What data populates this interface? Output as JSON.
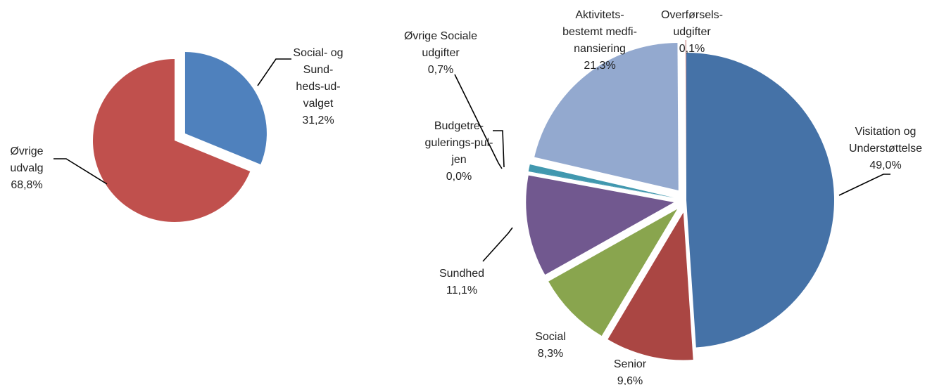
{
  "chart_data": [
    {
      "type": "pie",
      "title": "",
      "slices": [
        {
          "label_lines": [
            "Social- og",
            "Sund-",
            "heds-ud-",
            "valget"
          ],
          "value": 31.2,
          "value_label": "31,2%",
          "color": "#4f81bd",
          "exploded": true
        },
        {
          "label_lines": [
            "Øvrige",
            "udvalg"
          ],
          "value": 68.8,
          "value_label": "68,8%",
          "color": "#c0504d",
          "exploded": false
        }
      ]
    },
    {
      "type": "pie",
      "title": "",
      "slices": [
        {
          "label_lines": [
            "Visitation og",
            "Understøttelse"
          ],
          "value": 49.0,
          "value_label": "49,0%",
          "color": "#4572a7",
          "exploded": false
        },
        {
          "label_lines": [
            "Senior"
          ],
          "value": 9.6,
          "value_label": "9,6%",
          "color": "#aa4643",
          "exploded": true
        },
        {
          "label_lines": [
            "Social"
          ],
          "value": 8.3,
          "value_label": "8,3%",
          "color": "#89a54e",
          "exploded": true
        },
        {
          "label_lines": [
            "Sundhed"
          ],
          "value": 11.1,
          "value_label": "11,1%",
          "color": "#71588f",
          "exploded": true
        },
        {
          "label_lines": [
            "Budgetre-",
            "gulerings-pul-",
            "jen"
          ],
          "value": 0.0,
          "value_label": "0,0%",
          "color": "#4198af",
          "exploded": true
        },
        {
          "label_lines": [
            "Øvrige Sociale",
            "udgifter"
          ],
          "value": 0.7,
          "value_label": "0,7%",
          "color": "#4198af",
          "exploded": true
        },
        {
          "label_lines": [
            "Aktivitets-",
            "bestemt medfi-",
            "nansiering"
          ],
          "value": 21.3,
          "value_label": "21,3%",
          "color": "#93a9cf",
          "exploded": true
        },
        {
          "label_lines": [
            "Overførsels-",
            "udgifter"
          ],
          "value": 0.1,
          "value_label": "0,1%",
          "color": "#d19392",
          "exploded": true
        }
      ]
    }
  ]
}
